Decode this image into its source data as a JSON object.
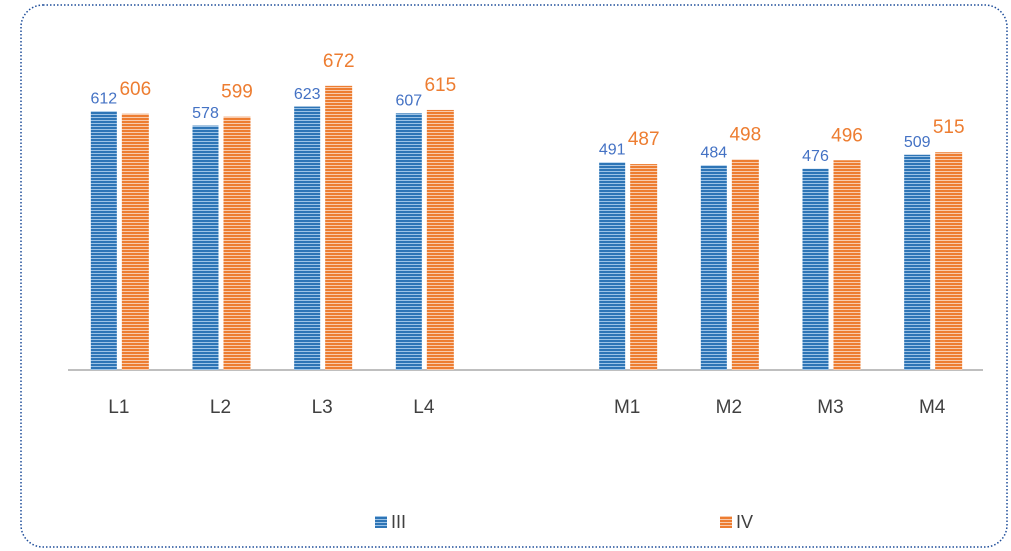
{
  "chart_data": {
    "type": "bar",
    "categories": [
      "L1",
      "L2",
      "L3",
      "L4",
      null,
      "M1",
      "M2",
      "M3",
      "M4"
    ],
    "series": [
      {
        "name": "III",
        "color": "#2e75b6",
        "values": [
          612,
          578,
          623,
          607,
          null,
          491,
          484,
          476,
          509
        ]
      },
      {
        "name": "IV",
        "color": "#ed7d31",
        "values": [
          606,
          599,
          672,
          615,
          null,
          487,
          498,
          496,
          515
        ]
      }
    ],
    "ylim": [
      0,
      700
    ],
    "legend": "bottom"
  }
}
